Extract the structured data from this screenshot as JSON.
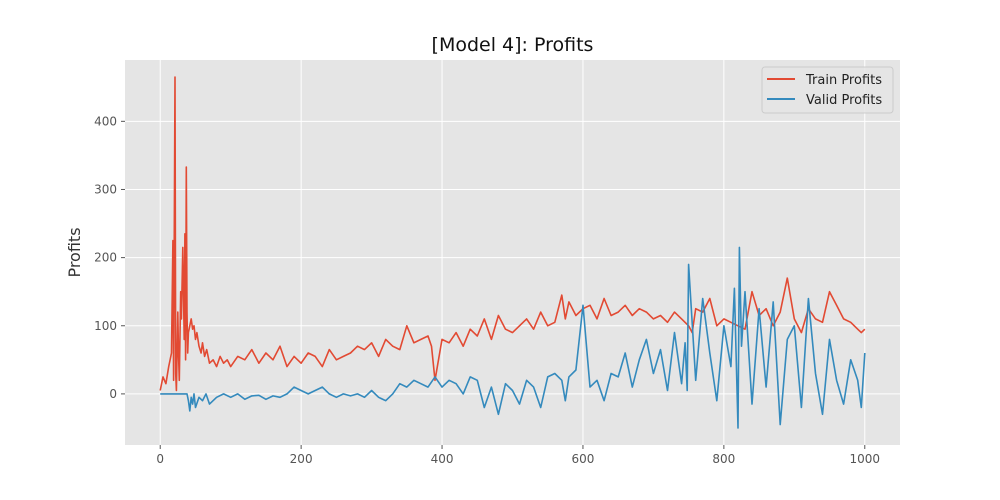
{
  "chart_data": {
    "type": "line",
    "title": "[Model 4]: Profits",
    "xlabel": "",
    "ylabel": "Profits",
    "xlim": [
      -50,
      1050
    ],
    "ylim": [
      -75,
      490
    ],
    "xticks": [
      0,
      200,
      400,
      600,
      800,
      1000
    ],
    "yticks": [
      0,
      100,
      200,
      300,
      400
    ],
    "grid": true,
    "legend_position": "top-right",
    "background": "#e5e5e5",
    "series": [
      {
        "name": "Train Profits",
        "color": "#e24a33",
        "x": [
          0,
          4,
          8,
          12,
          16,
          18,
          19,
          21,
          22,
          23,
          25,
          26,
          27,
          29,
          30,
          32,
          34,
          35,
          36,
          37,
          38,
          39,
          40,
          42,
          44,
          46,
          48,
          50,
          52,
          55,
          58,
          60,
          63,
          66,
          70,
          75,
          80,
          85,
          90,
          95,
          100,
          110,
          120,
          130,
          140,
          150,
          160,
          170,
          180,
          190,
          200,
          210,
          220,
          230,
          240,
          250,
          260,
          270,
          280,
          290,
          300,
          310,
          320,
          330,
          340,
          350,
          360,
          370,
          380,
          385,
          390,
          400,
          410,
          420,
          430,
          440,
          450,
          460,
          470,
          480,
          490,
          500,
          510,
          520,
          530,
          540,
          550,
          560,
          570,
          575,
          580,
          590,
          600,
          610,
          620,
          630,
          640,
          650,
          660,
          670,
          680,
          690,
          700,
          710,
          720,
          730,
          740,
          750,
          755,
          760,
          770,
          780,
          790,
          800,
          810,
          820,
          830,
          840,
          850,
          860,
          870,
          880,
          890,
          900,
          910,
          920,
          930,
          940,
          950,
          960,
          970,
          980,
          990,
          995,
          1000
        ],
        "values": [
          5,
          25,
          15,
          40,
          60,
          225,
          20,
          465,
          30,
          5,
          120,
          60,
          20,
          150,
          110,
          215,
          80,
          235,
          50,
          333,
          120,
          60,
          90,
          100,
          110,
          95,
          100,
          80,
          90,
          70,
          60,
          75,
          55,
          65,
          45,
          50,
          40,
          55,
          45,
          50,
          40,
          55,
          50,
          65,
          45,
          60,
          50,
          70,
          40,
          55,
          45,
          60,
          55,
          40,
          65,
          50,
          55,
          60,
          70,
          65,
          75,
          55,
          80,
          70,
          65,
          100,
          75,
          80,
          85,
          70,
          20,
          80,
          75,
          90,
          70,
          95,
          85,
          110,
          80,
          115,
          95,
          90,
          100,
          110,
          95,
          120,
          100,
          105,
          145,
          110,
          135,
          115,
          125,
          130,
          110,
          140,
          115,
          120,
          130,
          115,
          125,
          120,
          110,
          115,
          105,
          120,
          110,
          100,
          90,
          125,
          120,
          140,
          100,
          110,
          105,
          100,
          95,
          150,
          115,
          125,
          100,
          120,
          170,
          110,
          90,
          125,
          110,
          105,
          150,
          130,
          110,
          105,
          95,
          90,
          95
        ]
      },
      {
        "name": "Valid Profits",
        "color": "#348abd",
        "x": [
          0,
          10,
          20,
          30,
          35,
          38,
          40,
          42,
          44,
          46,
          48,
          50,
          55,
          60,
          65,
          70,
          80,
          90,
          100,
          110,
          120,
          130,
          140,
          150,
          160,
          170,
          180,
          190,
          200,
          210,
          220,
          230,
          240,
          250,
          260,
          270,
          280,
          290,
          300,
          310,
          320,
          330,
          340,
          350,
          360,
          370,
          380,
          390,
          400,
          410,
          420,
          430,
          440,
          450,
          460,
          470,
          480,
          490,
          500,
          510,
          520,
          530,
          540,
          550,
          560,
          570,
          575,
          580,
          590,
          600,
          610,
          620,
          630,
          640,
          650,
          660,
          670,
          680,
          690,
          700,
          710,
          720,
          730,
          740,
          745,
          748,
          750,
          760,
          770,
          780,
          790,
          800,
          810,
          815,
          820,
          822,
          825,
          830,
          840,
          850,
          860,
          870,
          880,
          890,
          900,
          910,
          920,
          930,
          940,
          950,
          960,
          970,
          980,
          990,
          995,
          1000
        ],
        "values": [
          0,
          0,
          0,
          0,
          0,
          0,
          -10,
          -25,
          -5,
          -15,
          0,
          -20,
          -5,
          -10,
          0,
          -15,
          -5,
          0,
          -5,
          0,
          -8,
          -3,
          -2,
          -8,
          -3,
          -5,
          0,
          10,
          5,
          0,
          5,
          10,
          0,
          -5,
          0,
          -3,
          0,
          -5,
          5,
          -5,
          -10,
          0,
          15,
          10,
          20,
          15,
          10,
          25,
          10,
          20,
          15,
          0,
          25,
          20,
          -20,
          10,
          -30,
          15,
          5,
          -15,
          20,
          10,
          -20,
          25,
          30,
          20,
          -10,
          25,
          35,
          130,
          10,
          20,
          -10,
          30,
          25,
          60,
          10,
          50,
          80,
          30,
          65,
          5,
          90,
          15,
          75,
          5,
          190,
          20,
          140,
          60,
          -10,
          100,
          40,
          155,
          -50,
          215,
          70,
          150,
          -15,
          125,
          10,
          135,
          -45,
          80,
          100,
          -20,
          140,
          30,
          -30,
          80,
          20,
          -15,
          50,
          20,
          -20,
          60
        ]
      }
    ]
  }
}
